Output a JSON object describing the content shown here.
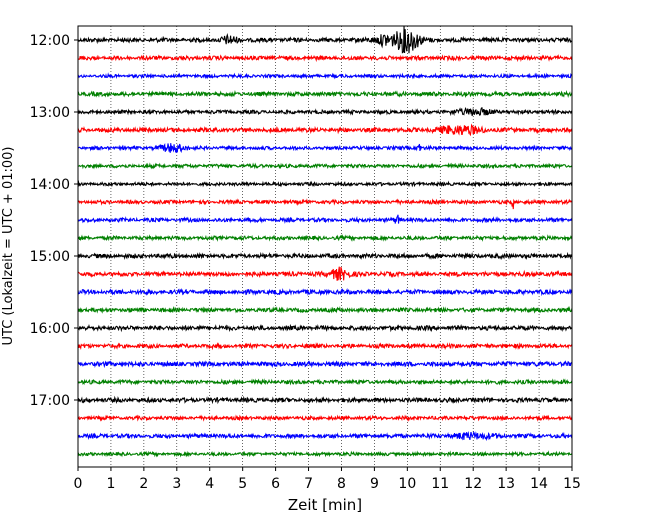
{
  "chart_data": {
    "type": "line",
    "title": "",
    "xlabel": "Zeit  [min]",
    "ylabel": "UTC (Lokalzeit = UTC + 01:00)",
    "xlim": [
      0,
      15
    ],
    "x_ticks": [
      0,
      1,
      2,
      3,
      4,
      5,
      6,
      7,
      8,
      9,
      10,
      11,
      12,
      13,
      14,
      15
    ],
    "y_ticks": [
      "12:00",
      "13:00",
      "14:00",
      "15:00",
      "16:00",
      "17:00"
    ],
    "grid": {
      "vertical": "dotted",
      "horizontal": false
    },
    "trace_interval_minutes": 15,
    "trace_start": "12:00",
    "trace_count": 24,
    "trace_colors": [
      "#000000",
      "#ff0000",
      "#0000ff",
      "#008000"
    ],
    "events": [
      {
        "trace": 0,
        "x": 10.0,
        "amp": 2.6,
        "width": 0.35
      },
      {
        "trace": 0,
        "x": 9.3,
        "amp": 1.0,
        "width": 0.3
      },
      {
        "trace": 0,
        "x": 4.6,
        "amp": 0.7,
        "width": 0.25
      },
      {
        "trace": 6,
        "x": 10.35,
        "amp": 1.5,
        "width": 0.04
      },
      {
        "trace": 6,
        "x": 2.9,
        "amp": 0.8,
        "width": 0.35
      },
      {
        "trace": 5,
        "x": 11.6,
        "amp": 0.8,
        "width": 0.6
      },
      {
        "trace": 9,
        "x": 13.2,
        "amp": 1.6,
        "width": 0.03
      },
      {
        "trace": 10,
        "x": 9.7,
        "amp": 0.8,
        "width": 0.08
      },
      {
        "trace": 13,
        "x": 7.95,
        "amp": 1.2,
        "width": 0.25
      },
      {
        "trace": 4,
        "x": 12.0,
        "amp": 0.6,
        "width": 0.5
      },
      {
        "trace": 22,
        "x": 12.0,
        "amp": 0.5,
        "width": 0.6
      }
    ]
  }
}
